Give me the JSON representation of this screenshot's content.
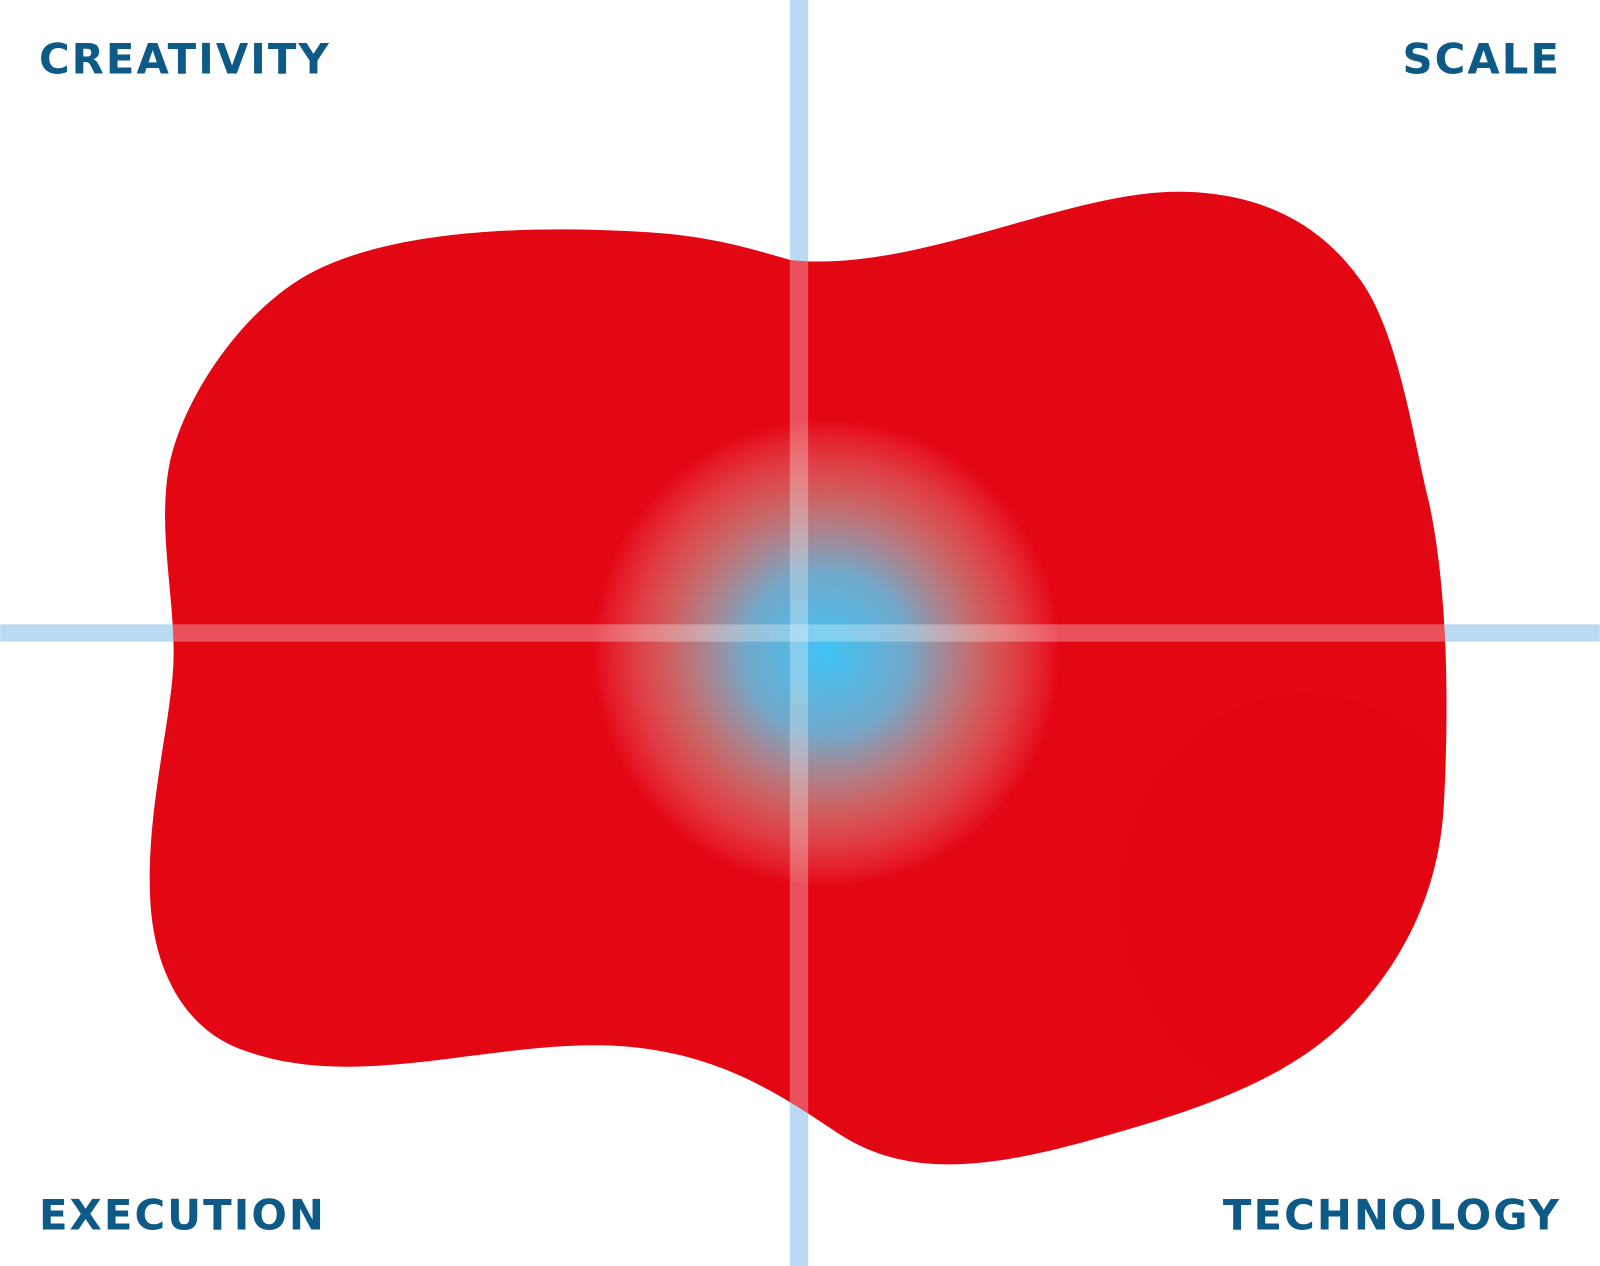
{
  "quadrant_labels": [
    "CREATIVITY",
    "SCALE",
    "EXECUTION",
    "TECHNOLOGY"
  ]
}
